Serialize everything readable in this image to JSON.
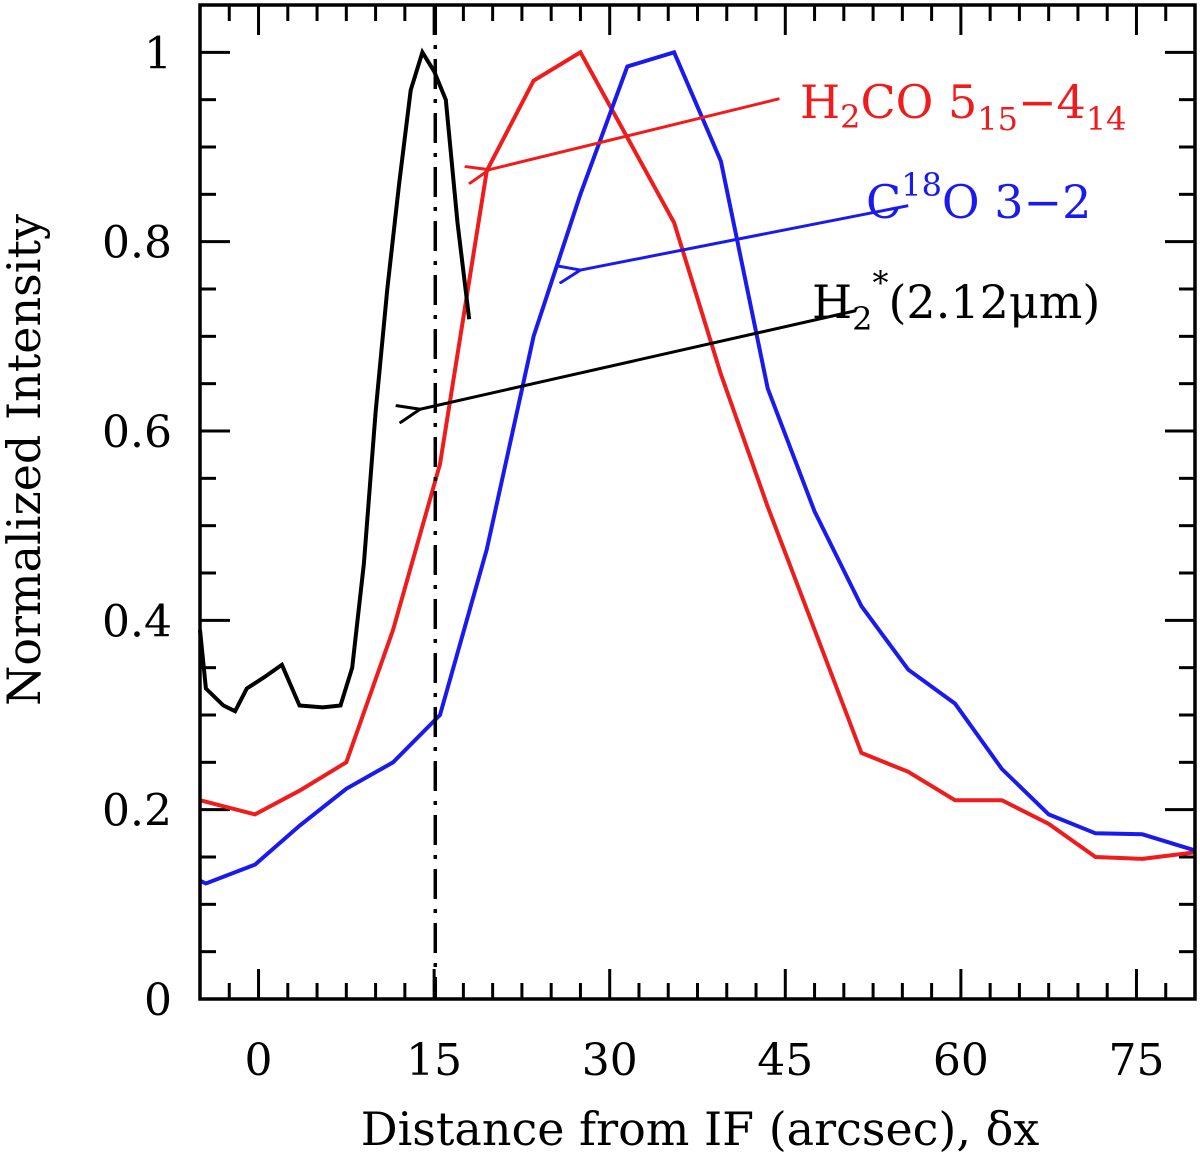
{
  "chart_data": {
    "type": "line",
    "xlabel": "Distance from IF (arcsec), δx",
    "ylabel": "Normalized Intensity",
    "xlim": [
      -5,
      80
    ],
    "ylim": [
      0,
      1.05
    ],
    "x_ticks": [
      0,
      15,
      30,
      45,
      60,
      75
    ],
    "x_tick_labels": [
      "0",
      "15",
      "30",
      "45",
      "60",
      "75"
    ],
    "y_ticks": [
      0,
      0.2,
      0.4,
      0.6,
      0.8,
      1
    ],
    "y_tick_labels": [
      "0",
      "0.2",
      "0.4",
      "0.6",
      "0.8",
      "1"
    ],
    "grid": false,
    "reference_line": {
      "x": 15.1,
      "style": "dash-dot"
    },
    "series": [
      {
        "name": "H2CO 5_15−4_14",
        "label_base": "H",
        "label_sub1": "2",
        "label_mid": "CO 5",
        "label_sub2": "15",
        "label_mid2": "−4",
        "label_sub3": "14",
        "color": "#ee1c1c",
        "x": [
          -5,
          -0.3,
          3.5,
          7.5,
          11.5,
          15.5,
          19.5,
          23.5,
          27.5,
          31.5,
          35.5,
          39.5,
          43.5,
          47.5,
          51.5,
          55.5,
          59.5,
          63.5,
          67.5,
          71.5,
          75.5,
          80
        ],
        "y": [
          0.21,
          0.195,
          0.22,
          0.25,
          0.39,
          0.565,
          0.875,
          0.97,
          1.0,
          0.91,
          0.82,
          0.66,
          0.52,
          0.39,
          0.26,
          0.24,
          0.21,
          0.21,
          0.185,
          0.15,
          0.148,
          0.155
        ],
        "arrow": {
          "from": [
            44.5,
            0.951
          ],
          "to": [
            19.7,
            0.876
          ]
        }
      },
      {
        "name": "C18O 3−2",
        "label_base": "C",
        "label_sup": "18",
        "label_mid": "O 3−2",
        "color": "#1a1aee",
        "x": [
          -5,
          -4.5,
          -0.3,
          3.5,
          7.5,
          11.5,
          15.5,
          19.5,
          23.5,
          27.5,
          31.5,
          35.5,
          39.5,
          43.5,
          47.5,
          51.5,
          55.5,
          59.5,
          63.5,
          67.5,
          71.5,
          75.5,
          80
        ],
        "y": [
          0.125,
          0.122,
          0.142,
          0.183,
          0.222,
          0.25,
          0.3,
          0.475,
          0.7,
          0.85,
          0.985,
          1.0,
          0.885,
          0.645,
          0.515,
          0.415,
          0.348,
          0.312,
          0.243,
          0.195,
          0.175,
          0.174,
          0.157
        ],
        "arrow": {
          "from": [
            55.5,
            0.838
          ],
          "to": [
            27.5,
            0.77
          ]
        }
      },
      {
        "name": "H2*(2.12μm)",
        "label_base": "H",
        "label_sub": "2",
        "label_sup": "*",
        "label_rest": "(2.12μm)",
        "color": "#000000",
        "x": [
          -5,
          -4.5,
          -3,
          -2,
          -1,
          0.5,
          2,
          3.5,
          5.5,
          7,
          8,
          9,
          10,
          11,
          12,
          13,
          14,
          15,
          16,
          17,
          18
        ],
        "y": [
          0.39,
          0.328,
          0.31,
          0.304,
          0.328,
          0.34,
          0.353,
          0.31,
          0.308,
          0.31,
          0.35,
          0.46,
          0.62,
          0.75,
          0.86,
          0.96,
          1.0,
          0.98,
          0.95,
          0.82,
          0.718
        ],
        "arrow": {
          "from": [
            51,
            0.727
          ],
          "to": [
            13.8,
            0.623
          ]
        }
      }
    ]
  }
}
